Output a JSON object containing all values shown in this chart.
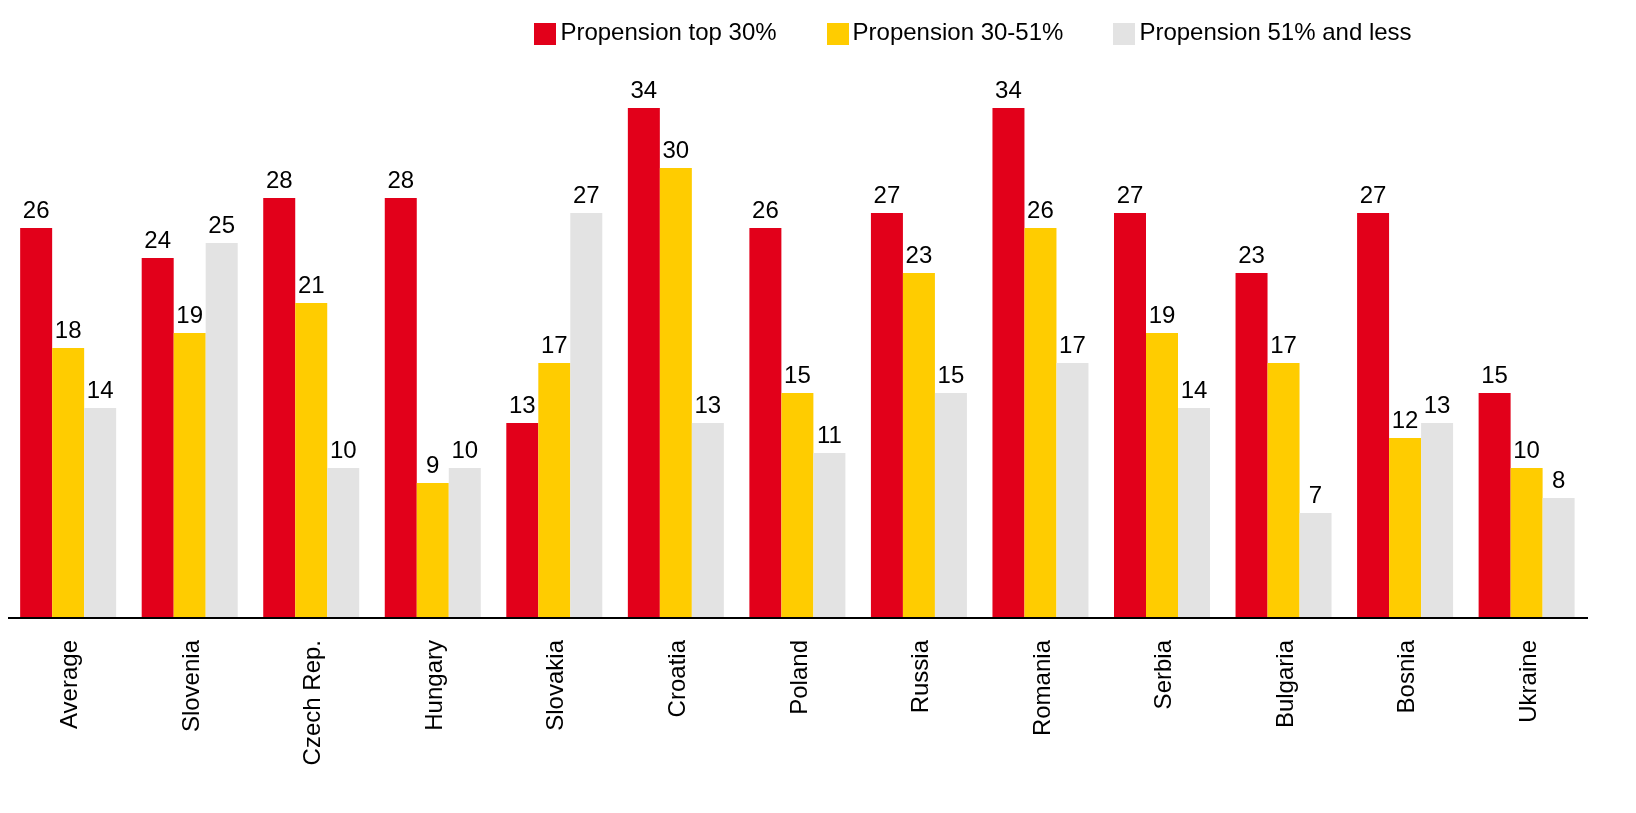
{
  "chart_data": {
    "type": "bar",
    "categories": [
      "Average",
      "Slovenia",
      "Czech Rep.",
      "Hungary",
      "Slovakia",
      "Croatia",
      "Poland",
      "Russia",
      "Romania",
      "Serbia",
      "Bulgaria",
      "Bosnia",
      "Ukraine"
    ],
    "series": [
      {
        "name": "Propension top 30%",
        "color": "#e2001a",
        "values": [
          26,
          24,
          28,
          28,
          13,
          34,
          26,
          27,
          34,
          27,
          23,
          27,
          15
        ]
      },
      {
        "name": "Propension 30-51%",
        "color": "#ffcc00",
        "values": [
          18,
          19,
          21,
          9,
          17,
          30,
          15,
          23,
          26,
          19,
          17,
          12,
          10
        ]
      },
      {
        "name": "Propension 51% and less",
        "color": "#e3e3e3",
        "values": [
          14,
          25,
          10,
          10,
          27,
          13,
          11,
          15,
          17,
          14,
          7,
          13,
          8
        ]
      }
    ],
    "data_labels": true,
    "legend": "top",
    "grid": false
  }
}
